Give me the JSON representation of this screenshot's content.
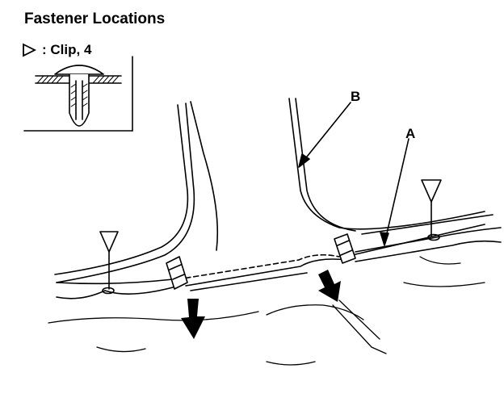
{
  "title": "Fastener Locations",
  "legend": {
    "symbol": "triangle-marker-icon",
    "label": ": Clip, 4"
  },
  "callouts": {
    "a": "A",
    "b": "B"
  },
  "colors": {
    "line": "#000000",
    "background": "#ffffff"
  }
}
